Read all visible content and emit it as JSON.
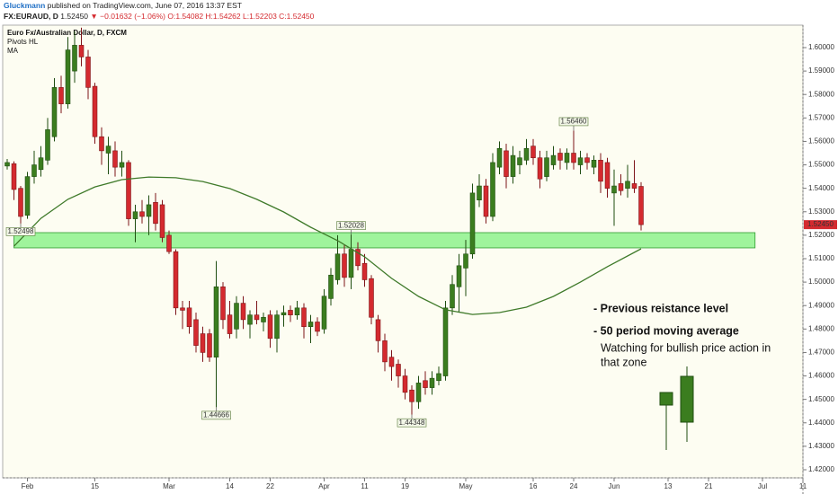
{
  "header": {
    "author": "Gluckmann",
    "published": "published on TradingView.com, June 07, 2016 13:37 EST",
    "symbol": "FX:EURAUD, D",
    "last": "1.52450",
    "change": "▼ −0.01632 (−1.06%)",
    "ohlc": "O:1.54082 H:1.54262 L:1.52203 C:1.52450"
  },
  "chart_data": {
    "type": "candlestick",
    "title": "Euro Fx/Australian Dollar, D, FXCM",
    "legend": [
      "Pivots HL",
      "MA"
    ],
    "up_color": "#3b7d1f",
    "down_color": "#d42a2f",
    "ma_color": "#3f7a2a",
    "grid": false,
    "xlim": [
      -0.667,
      118
    ],
    "xticks": [
      {
        "value": 3,
        "label": "Feb"
      },
      {
        "value": 13,
        "label": "15"
      },
      {
        "value": 24,
        "label": "Mar"
      },
      {
        "value": 33,
        "label": "14"
      },
      {
        "value": 39,
        "label": "22"
      },
      {
        "value": 47,
        "label": "Apr"
      },
      {
        "value": 53,
        "label": "11"
      },
      {
        "value": 59,
        "label": "19"
      },
      {
        "value": 68,
        "label": "May"
      },
      {
        "value": 78,
        "label": "16"
      },
      {
        "value": 84,
        "label": "24"
      },
      {
        "value": 90,
        "label": "Jun"
      },
      {
        "value": 98,
        "label": "13"
      },
      {
        "value": 104,
        "label": "21"
      },
      {
        "value": 112,
        "label": "Jul"
      },
      {
        "value": 118,
        "label": "11"
      }
    ],
    "ylim": [
      1.41655,
      1.60957
    ],
    "yticks": [
      {
        "value": 1.42,
        "label": "1.42000"
      },
      {
        "value": 1.43,
        "label": "1.43000"
      },
      {
        "value": 1.44,
        "label": "1.44000"
      },
      {
        "value": 1.45,
        "label": "1.45000"
      },
      {
        "value": 1.46,
        "label": "1.46000"
      },
      {
        "value": 1.47,
        "label": "1.47000"
      },
      {
        "value": 1.48,
        "label": "1.48000"
      },
      {
        "value": 1.49,
        "label": "1.49000"
      },
      {
        "value": 1.5,
        "label": "1.50000"
      },
      {
        "value": 1.51,
        "label": "1.51000"
      },
      {
        "value": 1.52,
        "label": "1.52000"
      },
      {
        "value": 1.53,
        "label": "1.53000"
      },
      {
        "value": 1.54,
        "label": "1.54000"
      },
      {
        "value": 1.55,
        "label": "1.55000"
      },
      {
        "value": 1.56,
        "label": "1.56000"
      },
      {
        "value": 1.57,
        "label": "1.57000"
      },
      {
        "value": 1.58,
        "label": "1.58000"
      },
      {
        "value": 1.59,
        "label": "1.59000"
      },
      {
        "value": 1.6,
        "label": "1.60000"
      }
    ],
    "open": [
      1.5495,
      1.5505,
      1.54,
      1.5285,
      1.545,
      1.548,
      1.552,
      1.562,
      1.583,
      1.576,
      1.59,
      1.601,
      1.596,
      1.5835,
      1.562,
      1.555,
      1.556,
      1.549,
      1.551,
      1.527,
      1.53,
      1.528,
      1.534,
      1.533,
      1.52,
      1.513,
      1.489,
      1.489,
      1.484,
      1.478,
      1.478,
      1.468,
      1.498,
      1.486,
      1.48,
      1.491,
      1.482,
      1.486,
      1.483,
      1.486,
      1.476,
      1.486,
      1.488,
      1.486,
      1.489,
      1.481,
      1.483,
      1.48,
      1.493,
      1.501,
      1.512,
      1.502,
      1.514,
      1.508,
      1.5015,
      1.484,
      1.475,
      1.468,
      1.465,
      1.46,
      1.454,
      1.449,
      1.458,
      1.455,
      1.458,
      1.46,
      1.489,
      1.498,
      1.506,
      1.512,
      1.535,
      1.541,
      1.528,
      1.549,
      1.556,
      1.545,
      1.55,
      1.552,
      1.558,
      1.553,
      1.545,
      1.55,
      1.555,
      1.551,
      1.555,
      1.55,
      1.553,
      1.549,
      1.552,
      1.551,
      1.538,
      1.542,
      1.54,
      1.542,
      1.54082
    ],
    "high": [
      1.5525,
      1.5515,
      1.541,
      1.547,
      1.556,
      1.558,
      1.57,
      1.587,
      1.588,
      1.6045,
      1.607,
      1.6085,
      1.599,
      1.585,
      1.566,
      1.562,
      1.56,
      1.556,
      1.552,
      1.533,
      1.535,
      1.537,
      1.538,
      1.535,
      1.522,
      1.514,
      1.492,
      1.492,
      1.487,
      1.481,
      1.48,
      1.509,
      1.5,
      1.492,
      1.494,
      1.494,
      1.488,
      1.492,
      1.487,
      1.488,
      1.488,
      1.49,
      1.49,
      1.492,
      1.491,
      1.486,
      1.485,
      1.497,
      1.506,
      1.52,
      1.516,
      1.52028,
      1.517,
      1.512,
      1.503,
      1.486,
      1.478,
      1.471,
      1.467,
      1.463,
      1.456,
      1.46,
      1.462,
      1.462,
      1.464,
      1.492,
      1.503,
      1.512,
      1.518,
      1.542,
      1.546,
      1.544,
      1.555,
      1.56,
      1.559,
      1.558,
      1.556,
      1.561,
      1.561,
      1.556,
      1.556,
      1.558,
      1.557,
      1.557,
      1.5646,
      1.556,
      1.555,
      1.554,
      1.555,
      1.553,
      1.548,
      1.546,
      1.55,
      1.552,
      1.54262
    ],
    "low": [
      1.548,
      1.535,
      1.52498,
      1.527,
      1.542,
      1.545,
      1.55,
      1.56,
      1.572,
      1.574,
      1.585,
      1.592,
      1.578,
      1.559,
      1.55,
      1.546,
      1.545,
      1.545,
      1.524,
      1.517,
      1.525,
      1.52,
      1.522,
      1.517,
      1.512,
      1.486,
      1.48,
      1.478,
      1.47,
      1.466,
      1.466,
      1.44666,
      1.48,
      1.476,
      1.476,
      1.48,
      1.476,
      1.482,
      1.479,
      1.472,
      1.47,
      1.481,
      1.483,
      1.484,
      1.476,
      1.474,
      1.477,
      1.478,
      1.49,
      1.499,
      1.498,
      1.497,
      1.505,
      1.498,
      1.482,
      1.47,
      1.462,
      1.458,
      1.455,
      1.45,
      1.44348,
      1.446,
      1.452,
      1.452,
      1.456,
      1.458,
      1.486,
      1.487,
      1.494,
      1.51,
      1.532,
      1.525,
      1.526,
      1.546,
      1.54,
      1.542,
      1.546,
      1.55,
      1.55,
      1.54,
      1.543,
      1.548,
      1.548,
      1.548,
      1.548,
      1.546,
      1.548,
      1.546,
      1.538,
      1.536,
      1.524,
      1.537,
      1.536,
      1.538,
      1.52203
    ],
    "close": [
      1.551,
      1.5395,
      1.528,
      1.545,
      1.55,
      1.553,
      1.565,
      1.583,
      1.576,
      1.599,
      1.601,
      1.596,
      1.583,
      1.562,
      1.556,
      1.558,
      1.549,
      1.551,
      1.527,
      1.53,
      1.528,
      1.533,
      1.525,
      1.519,
      1.513,
      1.489,
      1.488,
      1.481,
      1.473,
      1.47,
      1.468,
      1.498,
      1.484,
      1.478,
      1.491,
      1.484,
      1.486,
      1.484,
      1.485,
      1.476,
      1.486,
      1.487,
      1.486,
      1.489,
      1.481,
      1.483,
      1.479,
      1.494,
      1.503,
      1.512,
      1.502,
      1.514,
      1.507,
      1.501,
      1.485,
      1.475,
      1.466,
      1.464,
      1.46,
      1.453,
      1.449,
      1.457,
      1.455,
      1.459,
      1.461,
      1.489,
      1.499,
      1.507,
      1.512,
      1.538,
      1.541,
      1.528,
      1.551,
      1.557,
      1.545,
      1.554,
      1.553,
      1.557,
      1.553,
      1.544,
      1.553,
      1.554,
      1.552,
      1.555,
      1.551,
      1.553,
      1.551,
      1.552,
      1.543,
      1.54,
      1.541,
      1.539,
      1.543,
      1.54,
      1.5245
    ],
    "ma": {
      "x": [
        1,
        5,
        9,
        13,
        17,
        21,
        25,
        29,
        33,
        37,
        41,
        45,
        49,
        53,
        57,
        61,
        65,
        69,
        73,
        77,
        81,
        85,
        89,
        94
      ],
      "values": [
        1.5153,
        1.5272,
        1.5353,
        1.5406,
        1.5437,
        1.5448,
        1.5445,
        1.5429,
        1.5399,
        1.5353,
        1.5299,
        1.5234,
        1.5177,
        1.5108,
        1.5016,
        1.4939,
        1.4882,
        1.4862,
        1.487,
        1.4893,
        1.4939,
        1.5,
        1.5066,
        1.5142
      ]
    },
    "pivots": {
      "x": [
        2,
        31,
        51,
        60,
        84
      ],
      "values": [
        1.52498,
        1.44666,
        1.52028,
        1.44348,
        1.5646
      ],
      "value_labels": [
        "1.52498",
        "1.44666",
        "1.52028",
        "1.44348",
        "1.56460"
      ]
    },
    "zone": {
      "x": [
        1,
        110.9
      ],
      "y": [
        1.5146,
        1.5211
      ]
    },
    "price_label": {
      "value": 1.5245,
      "label": "1.52450"
    },
    "annotations": [
      "- Previous reistance level",
      "- 50 period moving average",
      "Watching for bullish price action in",
      "that zone"
    ]
  }
}
